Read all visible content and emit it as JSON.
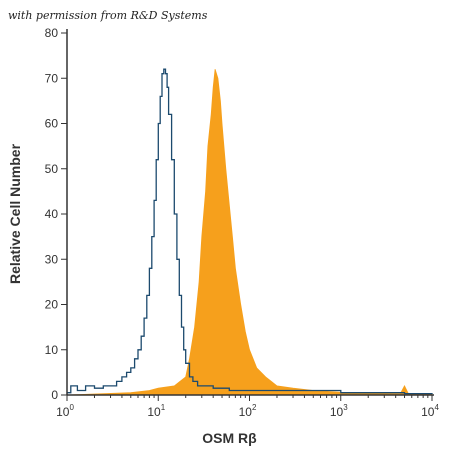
{
  "watermark": "with permission from R&D Systems",
  "colors": {
    "control": "#1c4a6e",
    "sample": "#f6a01c",
    "axis": "#333333"
  },
  "chart_data": {
    "type": "area",
    "title": "",
    "xlabel": "OSM Rβ",
    "ylabel": "Relative Cell Number",
    "x_scale": "log10",
    "xlim": [
      1,
      10000
    ],
    "ylim": [
      0,
      80
    ],
    "x_ticks": [
      {
        "value": 1,
        "label": "10",
        "exp": "0"
      },
      {
        "value": 10,
        "label": "10",
        "exp": "1"
      },
      {
        "value": 100,
        "label": "10",
        "exp": "2"
      },
      {
        "value": 1000,
        "label": "10",
        "exp": "3"
      },
      {
        "value": 10000,
        "label": "10",
        "exp": "4"
      }
    ],
    "y_ticks": [
      0,
      10,
      20,
      30,
      40,
      50,
      60,
      70,
      80
    ],
    "grid": false,
    "legend": "none",
    "series": [
      {
        "style": "outline",
        "color": "#1c4a6e",
        "x": [
          1,
          1.1,
          1.3,
          1.6,
          2,
          2.5,
          3,
          3.5,
          4,
          4.5,
          5,
          5.5,
          6,
          6.5,
          7,
          7.5,
          8,
          8.5,
          9,
          9.5,
          10,
          10.5,
          11,
          11.5,
          12,
          12.5,
          13,
          14,
          15,
          16,
          17,
          18,
          19,
          20,
          22,
          24,
          27,
          30,
          40,
          60,
          100,
          200,
          1000,
          5000,
          10000
        ],
        "y": [
          0.5,
          2,
          1,
          2,
          1.5,
          2,
          2,
          3,
          4,
          5,
          6,
          8,
          10,
          13,
          17,
          22,
          28,
          35,
          43,
          52,
          60,
          66,
          71,
          72,
          71,
          68,
          62,
          52,
          40,
          30,
          22,
          15,
          10,
          7,
          4,
          3,
          2,
          2,
          1.5,
          1,
          1,
          1,
          0.5,
          0.3,
          0.2
        ]
      },
      {
        "style": "filled",
        "color": "#f6a01c",
        "x": [
          1,
          5,
          8,
          10,
          15,
          20,
          22,
          25,
          28,
          30,
          33,
          35,
          38,
          40,
          42,
          45,
          48,
          50,
          55,
          60,
          65,
          70,
          80,
          90,
          100,
          120,
          150,
          200,
          300,
          500,
          1000,
          2000,
          4500,
          5000,
          5500,
          10000
        ],
        "y": [
          0,
          0.5,
          1,
          1.5,
          2,
          4,
          8,
          15,
          25,
          35,
          45,
          55,
          62,
          68,
          72,
          70,
          65,
          60,
          50,
          42,
          35,
          28,
          20,
          14,
          10,
          6,
          4,
          2,
          1.5,
          1,
          0.6,
          0.4,
          0.3,
          2,
          0.3,
          0.1
        ]
      }
    ]
  }
}
